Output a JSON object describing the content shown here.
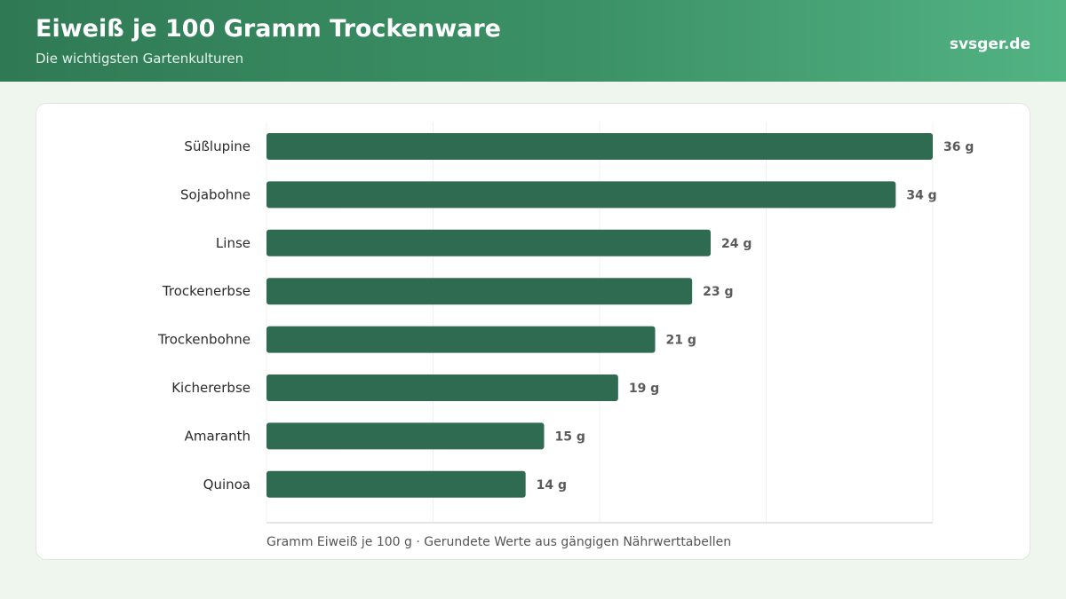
{
  "header": {
    "title": "Eiweiß je 100 Gramm Trockenware",
    "subtitle": "Die wichtigsten Gartenkulturen",
    "brand": "svsger.de"
  },
  "colors": {
    "bar": "#2e6b50",
    "header_start": "#2f7a55",
    "header_end": "#52b383",
    "background": "#eef6ee"
  },
  "chart_data": {
    "type": "bar",
    "orientation": "horizontal",
    "categories": [
      "Süßlupine",
      "Sojabohne",
      "Linse",
      "Trockenerbse",
      "Trockenbohne",
      "Kichererbse",
      "Amaranth",
      "Quinoa"
    ],
    "values": [
      36,
      34,
      24,
      23,
      21,
      19,
      15,
      14
    ],
    "value_labels": [
      "36 g",
      "34 g",
      "24 g",
      "23 g",
      "21 g",
      "19 g",
      "15 g",
      "14 g"
    ],
    "xlim": [
      0,
      36
    ],
    "grid": true,
    "legend": "none"
  },
  "footnote": "Gramm Eiweiß je 100 g · Gerundete Werte aus gängigen Nährwerttabellen"
}
